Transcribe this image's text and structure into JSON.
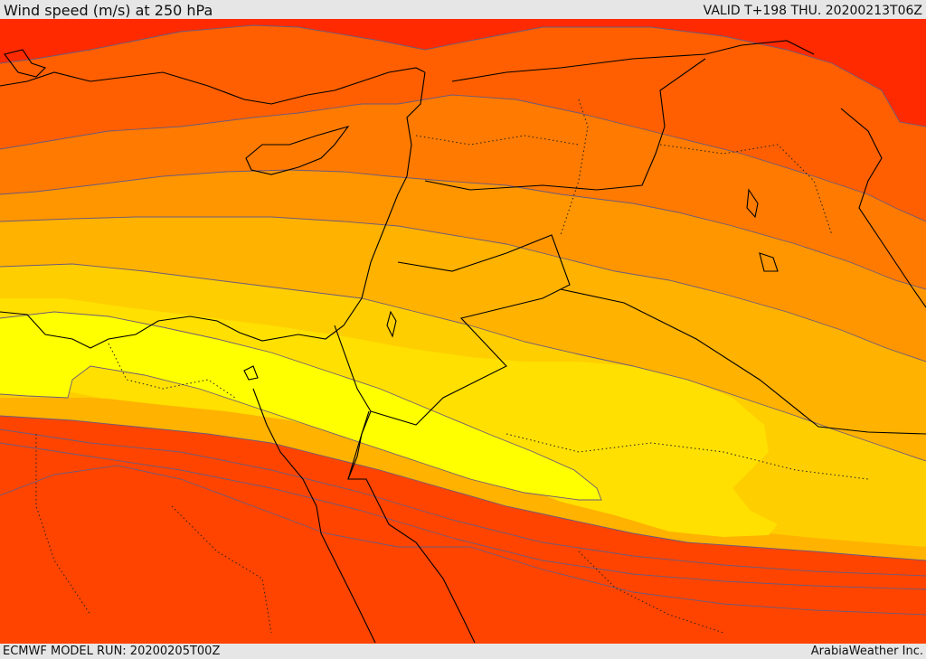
{
  "header": {
    "title": "Wind speed (m/s) at 250 hPa",
    "valid": "VALID T+198 THU. 20200213T06Z"
  },
  "footer": {
    "model_run": "ECMWF MODEL RUN: 20200205T00Z",
    "brand": "ArabiaWeather Inc."
  },
  "colors": {
    "band_strongest_red": "#ff2a00",
    "band_red": "#ff4400",
    "band_orange_red": "#ff5f00",
    "band_orange": "#ff7a00",
    "band_orange_light": "#ff9600",
    "band_amber": "#ffb200",
    "band_yellow_orange": "#ffce00",
    "band_yellow": "#ffe000",
    "band_bright_yellow": "#ffff00",
    "contour_line": "#6d5a7a",
    "coastline": "#000000"
  }
}
